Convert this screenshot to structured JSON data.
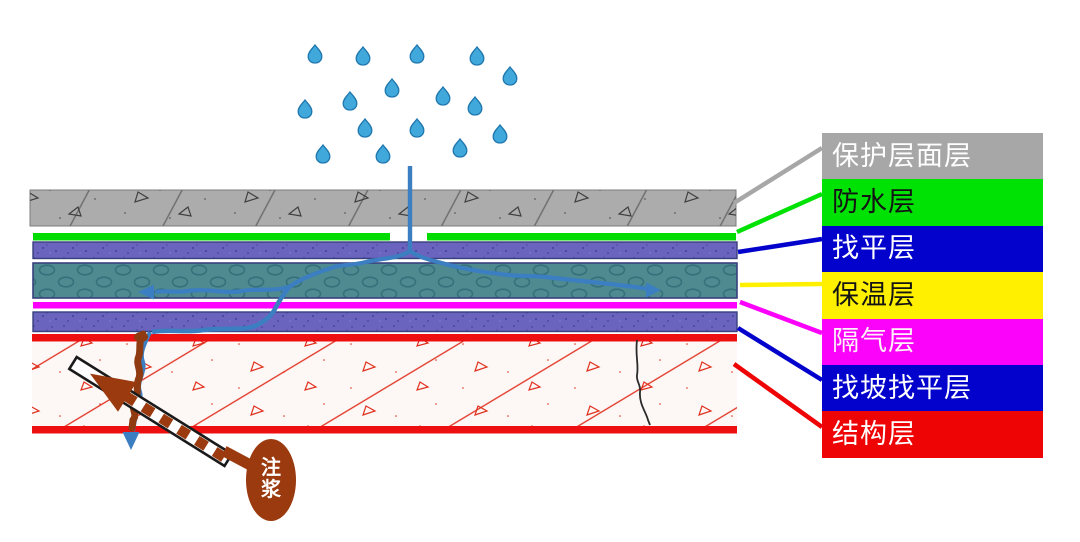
{
  "legend": {
    "items": [
      {
        "label": "保护层面层",
        "bg": "#a7a7a7",
        "fg": "#ffffff"
      },
      {
        "label": "防水层",
        "bg": "#00e104",
        "fg": "#141414"
      },
      {
        "label": "找平层",
        "bg": "#0202cc",
        "fg": "#ffffff"
      },
      {
        "label": "保温层",
        "bg": "#fff000",
        "fg": "#141414"
      },
      {
        "label": "隔气层",
        "bg": "#fb02fb",
        "fg": "#fff0fa"
      },
      {
        "label": "找坡找平层",
        "bg": "#0202cc",
        "fg": "#ffffff"
      },
      {
        "label": "结构层",
        "bg": "#ee0404",
        "fg": "#ffffff"
      }
    ]
  },
  "section_layers": [
    {
      "name": "保护层面层",
      "fill": "#acacac"
    },
    {
      "name": "防水层",
      "fill": "#00dc00"
    },
    {
      "name": "找平层",
      "fill": "#6a64be"
    },
    {
      "name": "保温层",
      "fill": "#4e8a90"
    },
    {
      "name": "隔气层",
      "fill": "#ff00ff"
    },
    {
      "name": "找坡找平层",
      "fill": "#6a64be"
    },
    {
      "name": "结构层",
      "fill": "#ee1010"
    }
  ],
  "rain": {
    "color": "#41a8db",
    "outline": "#1f77ae",
    "drops": [
      [
        315,
        53
      ],
      [
        363,
        55
      ],
      [
        417,
        53
      ],
      [
        477,
        55
      ],
      [
        510,
        75
      ],
      [
        392,
        87
      ],
      [
        443,
        95
      ],
      [
        350,
        100
      ],
      [
        305,
        108
      ],
      [
        475,
        105
      ],
      [
        365,
        127
      ],
      [
        417,
        127
      ],
      [
        500,
        133
      ],
      [
        460,
        147
      ],
      [
        323,
        153
      ],
      [
        383,
        153
      ]
    ]
  },
  "water_flow": {
    "color": "#3b7ec1"
  },
  "grouting": {
    "label": "注浆",
    "color": "#9c3a0f",
    "text_color": "#ffffff"
  }
}
